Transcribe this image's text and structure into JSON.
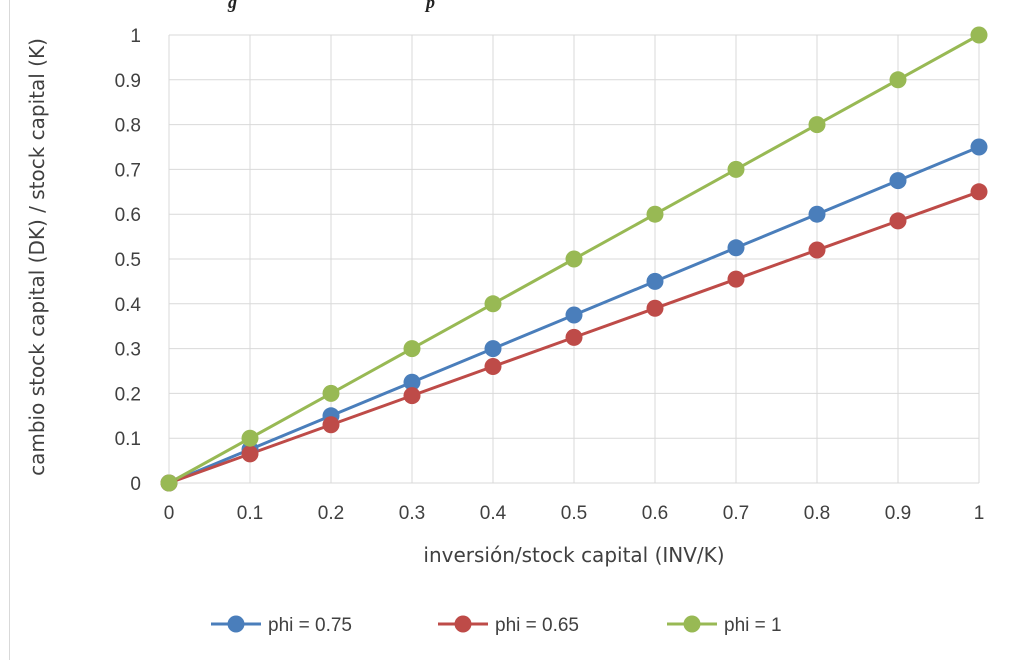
{
  "top_caption_fragment": "g                                          p",
  "chart_data": {
    "type": "line",
    "title": "",
    "xlabel": "inversión/stock capital (INV/K)",
    "ylabel": "cambio stock capital (DK) / stock capital (K)",
    "x": [
      0,
      0.1,
      0.2,
      0.3,
      0.4,
      0.5,
      0.6,
      0.7,
      0.8,
      0.9,
      1
    ],
    "x_tick_labels": [
      "0",
      "0.1",
      "0.2",
      "0.3",
      "0.4",
      "0.5",
      "0.6",
      "0.7",
      "0.8",
      "0.9",
      "1"
    ],
    "y_tick_labels": [
      "0",
      "0.1",
      "0.2",
      "0.3",
      "0.4",
      "0.5",
      "0.6",
      "0.7",
      "0.8",
      "0.9",
      "1"
    ],
    "xlim": [
      0,
      1
    ],
    "ylim": [
      0,
      1
    ],
    "grid": true,
    "legend_position": "bottom",
    "series": [
      {
        "name": "phi = 0.75",
        "color": "#4a7ebb",
        "values": [
          0,
          0.075,
          0.15,
          0.225,
          0.3,
          0.375,
          0.45,
          0.525,
          0.6,
          0.675,
          0.75
        ]
      },
      {
        "name": "phi = 0.65",
        "color": "#be4b48",
        "values": [
          0,
          0.065,
          0.13,
          0.195,
          0.26,
          0.325,
          0.39,
          0.455,
          0.52,
          0.585,
          0.65
        ]
      },
      {
        "name": "phi = 1",
        "color": "#98b954",
        "values": [
          0,
          0.1,
          0.2,
          0.3,
          0.4,
          0.5,
          0.6,
          0.7,
          0.8,
          0.9,
          1
        ]
      }
    ]
  }
}
